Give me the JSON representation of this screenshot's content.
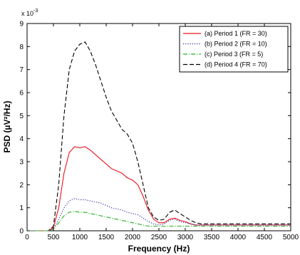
{
  "chart_data": {
    "type": "line",
    "xlabel": "Frequency (Hz)",
    "ylabel": "PSD (µV²/Hz)",
    "y_multiplier": "x 10",
    "y_multiplier_exp": "-3",
    "xlim": [
      0,
      5000
    ],
    "ylim": [
      0,
      9
    ],
    "x_ticks": [
      0,
      500,
      1000,
      1500,
      2000,
      2500,
      3000,
      3500,
      4000,
      4500,
      5000
    ],
    "x_tick_labels": [
      "0",
      "500",
      "1000",
      "1500",
      "2000",
      "2500",
      "3000",
      "3500",
      "4000",
      "4500",
      "5000"
    ],
    "y_ticks": [
      0,
      1,
      2,
      3,
      4,
      5,
      6,
      7,
      8,
      9
    ],
    "y_tick_labels": [
      "0",
      "1",
      "2",
      "3",
      "4",
      "5",
      "6",
      "7",
      "8",
      "9"
    ],
    "grid": false,
    "legend_position": "top-right",
    "series": [
      {
        "name": "(a) Period 1 (FR = 30)",
        "color": "#e8141c",
        "dash": "solid",
        "x": [
          0,
          400,
          500,
          600,
          700,
          800,
          900,
          1000,
          1100,
          1200,
          1300,
          1400,
          1500,
          1600,
          1700,
          1800,
          1900,
          2000,
          2100,
          2200,
          2300,
          2400,
          2500,
          2600,
          2700,
          2800,
          2900,
          3000,
          3100,
          3200,
          3300,
          3400,
          3500,
          4000,
          4500,
          5000
        ],
        "y": [
          0,
          0,
          0.15,
          1.0,
          2.5,
          3.4,
          3.65,
          3.6,
          3.65,
          3.5,
          3.3,
          3.1,
          2.9,
          2.7,
          2.6,
          2.5,
          2.3,
          2.2,
          2.0,
          1.5,
          0.9,
          0.5,
          0.35,
          0.35,
          0.5,
          0.55,
          0.45,
          0.4,
          0.3,
          0.25,
          0.25,
          0.25,
          0.25,
          0.25,
          0.25,
          0.25
        ]
      },
      {
        "name": "(b) Period 2 (FR = 10)",
        "color": "#2a2aa0",
        "dash": "dotted",
        "x": [
          0,
          400,
          500,
          600,
          700,
          800,
          900,
          1000,
          1100,
          1200,
          1300,
          1400,
          1500,
          1600,
          1700,
          1800,
          1900,
          2000,
          2100,
          2200,
          2300,
          2400,
          2500,
          2600,
          2700,
          2800,
          2900,
          3000,
          3100,
          3200,
          3300,
          3400,
          3500,
          4000,
          4500,
          5000
        ],
        "y": [
          0,
          0,
          0.1,
          0.5,
          1.0,
          1.3,
          1.4,
          1.35,
          1.35,
          1.3,
          1.25,
          1.2,
          1.1,
          1.0,
          0.95,
          0.9,
          0.8,
          0.75,
          0.7,
          0.55,
          0.4,
          0.3,
          0.25,
          0.3,
          0.45,
          0.5,
          0.4,
          0.35,
          0.3,
          0.25,
          0.25,
          0.25,
          0.25,
          0.25,
          0.25,
          0.25
        ]
      },
      {
        "name": "(c) Period 3 (FR = 5)",
        "color": "#22b022",
        "dash": "dashdot",
        "x": [
          0,
          400,
          500,
          600,
          700,
          800,
          900,
          1000,
          1100,
          1200,
          1300,
          1400,
          1500,
          1600,
          1700,
          1800,
          1900,
          2000,
          2100,
          2200,
          2300,
          2400,
          2500,
          2600,
          2700,
          2800,
          2900,
          3000,
          3100,
          3200,
          3300,
          3400,
          3500,
          4000,
          4500,
          5000
        ],
        "y": [
          0,
          0,
          0.08,
          0.35,
          0.65,
          0.8,
          0.85,
          0.8,
          0.8,
          0.75,
          0.7,
          0.65,
          0.6,
          0.55,
          0.5,
          0.45,
          0.4,
          0.35,
          0.3,
          0.25,
          0.2,
          0.2,
          0.2,
          0.2,
          0.2,
          0.2,
          0.2,
          0.2,
          0.2,
          0.2,
          0.2,
          0.2,
          0.2,
          0.2,
          0.2,
          0.2
        ]
      },
      {
        "name": "(d) Period 4 (FR = 70)",
        "color": "#000000",
        "dash": "dashed",
        "x": [
          0,
          400,
          500,
          600,
          700,
          800,
          900,
          1000,
          1100,
          1200,
          1300,
          1400,
          1500,
          1600,
          1700,
          1800,
          1900,
          2000,
          2100,
          2200,
          2300,
          2400,
          2500,
          2600,
          2700,
          2800,
          2900,
          3000,
          3100,
          3200,
          3300,
          3400,
          3500,
          4000,
          4500,
          5000
        ],
        "y": [
          0,
          0,
          0.2,
          2.0,
          5.0,
          7.0,
          7.8,
          8.1,
          8.2,
          7.8,
          7.2,
          6.5,
          5.8,
          5.2,
          4.8,
          4.4,
          4.2,
          3.8,
          3.0,
          2.0,
          1.0,
          0.6,
          0.45,
          0.5,
          0.8,
          0.9,
          0.75,
          0.6,
          0.45,
          0.35,
          0.3,
          0.3,
          0.3,
          0.3,
          0.3,
          0.3
        ]
      }
    ]
  }
}
